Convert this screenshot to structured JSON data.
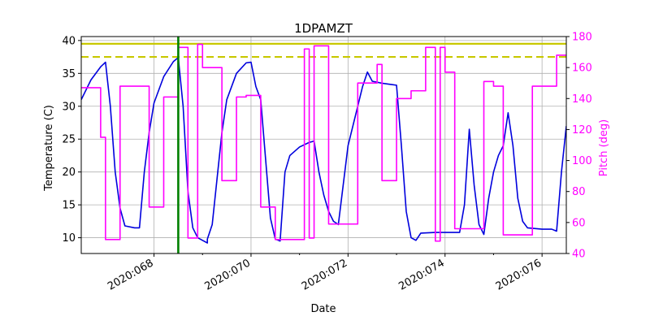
{
  "chart_data": {
    "type": "line",
    "title": "1DPAMZT",
    "xlabel": "Date",
    "ylabel": "Temperature (C)",
    "ylabel_right": "Pitch (deg)",
    "x_unit": "day of year 2020",
    "xlim": [
      2020.0665,
      2020.0765
    ],
    "ylim": [
      7.6,
      40.6
    ],
    "ylim_right": [
      40,
      180
    ],
    "x_ticks": [
      {
        "value": 2020.068,
        "label": "2020:068"
      },
      {
        "value": 2020.07,
        "label": "2020:070"
      },
      {
        "value": 2020.072,
        "label": "2020:072"
      },
      {
        "value": 2020.074,
        "label": "2020:074"
      },
      {
        "value": 2020.076,
        "label": "2020:076"
      }
    ],
    "y_ticks": [
      10,
      15,
      20,
      25,
      30,
      35,
      40
    ],
    "y_ticks_right": [
      40,
      60,
      80,
      100,
      120,
      140,
      160,
      180
    ],
    "grid": true,
    "colors": {
      "temperature": "#0000dd",
      "pitch": "#ff00ff",
      "limit": "#c8c800",
      "marker": "#008000",
      "right_axis": "#ff00ff"
    },
    "reference_lines": [
      {
        "kind": "horizontal",
        "y": 39.5,
        "style": "solid",
        "color": "#c8c800"
      },
      {
        "kind": "horizontal",
        "y": 37.5,
        "style": "dashed",
        "color": "#c8c800"
      },
      {
        "kind": "vertical",
        "x": 2020.0685,
        "style": "solid",
        "color": "#008000"
      }
    ],
    "series": [
      {
        "axis": "left",
        "color": "#0000dd",
        "points": [
          [
            2020.0665,
            31.0
          ],
          [
            2020.0667,
            34.0
          ],
          [
            2020.0669,
            36.0
          ],
          [
            2020.067,
            36.7
          ],
          [
            2020.0671,
            30.0
          ],
          [
            2020.0672,
            20.0
          ],
          [
            2020.0673,
            14.5
          ],
          [
            2020.0674,
            11.8
          ],
          [
            2020.0676,
            11.5
          ],
          [
            2020.0677,
            11.5
          ],
          [
            2020.0678,
            20.0
          ],
          [
            2020.0679,
            26.0
          ],
          [
            2020.068,
            30.5
          ],
          [
            2020.0682,
            34.5
          ],
          [
            2020.0684,
            36.8
          ],
          [
            2020.0685,
            37.4
          ],
          [
            2020.0686,
            30.0
          ],
          [
            2020.0687,
            17.0
          ],
          [
            2020.0688,
            11.5
          ],
          [
            2020.0689,
            10.0
          ],
          [
            2020.069,
            9.6
          ],
          [
            2020.0691,
            9.2
          ],
          [
            2020.0691,
            9.8
          ],
          [
            2020.0692,
            12.0
          ],
          [
            2020.0693,
            19.0
          ],
          [
            2020.0694,
            26.0
          ],
          [
            2020.0695,
            31.0
          ],
          [
            2020.0697,
            35.0
          ],
          [
            2020.0699,
            36.6
          ],
          [
            2020.07,
            36.7
          ],
          [
            2020.0701,
            33.0
          ],
          [
            2020.0702,
            31.0
          ],
          [
            2020.0703,
            22.0
          ],
          [
            2020.0704,
            13.0
          ],
          [
            2020.0705,
            9.8
          ],
          [
            2020.0706,
            9.5
          ],
          [
            2020.0707,
            20.0
          ],
          [
            2020.0708,
            22.5
          ],
          [
            2020.071,
            23.8
          ],
          [
            2020.0712,
            24.5
          ],
          [
            2020.0713,
            24.7
          ],
          [
            2020.0714,
            20.0
          ],
          [
            2020.0715,
            16.5
          ],
          [
            2020.0716,
            14.0
          ],
          [
            2020.0717,
            12.5
          ],
          [
            2020.0718,
            12.0
          ],
          [
            2020.0719,
            18.0
          ],
          [
            2020.072,
            24.0
          ],
          [
            2020.0722,
            30.0
          ],
          [
            2020.0723,
            33.0
          ],
          [
            2020.0724,
            35.2
          ],
          [
            2020.0725,
            33.8
          ],
          [
            2020.0727,
            33.5
          ],
          [
            2020.0729,
            33.3
          ],
          [
            2020.073,
            33.2
          ],
          [
            2020.0731,
            24.0
          ],
          [
            2020.0732,
            14.0
          ],
          [
            2020.0733,
            10.0
          ],
          [
            2020.0734,
            9.6
          ],
          [
            2020.0735,
            10.7
          ],
          [
            2020.0738,
            10.8
          ],
          [
            2020.0741,
            10.8
          ],
          [
            2020.0743,
            10.8
          ],
          [
            2020.0744,
            15.0
          ],
          [
            2020.0745,
            26.5
          ],
          [
            2020.0746,
            18.0
          ],
          [
            2020.0747,
            12.0
          ],
          [
            2020.0748,
            10.5
          ],
          [
            2020.0749,
            16.0
          ],
          [
            2020.075,
            20.0
          ],
          [
            2020.0751,
            22.5
          ],
          [
            2020.0752,
            24.0
          ],
          [
            2020.0753,
            29.0
          ],
          [
            2020.0754,
            24.0
          ],
          [
            2020.0755,
            16.0
          ],
          [
            2020.0756,
            12.5
          ],
          [
            2020.0757,
            11.5
          ],
          [
            2020.076,
            11.3
          ],
          [
            2020.0762,
            11.3
          ],
          [
            2020.0763,
            11.0
          ],
          [
            2020.0764,
            20.0
          ],
          [
            2020.0765,
            27.0
          ]
        ]
      },
      {
        "axis": "right",
        "color": "#ff00ff",
        "points": [
          [
            2020.0665,
            147
          ],
          [
            2020.0669,
            147
          ],
          [
            2020.0669,
            115
          ],
          [
            2020.067,
            115
          ],
          [
            2020.067,
            49
          ],
          [
            2020.0673,
            49
          ],
          [
            2020.0673,
            148
          ],
          [
            2020.0679,
            148
          ],
          [
            2020.0679,
            70
          ],
          [
            2020.0682,
            70
          ],
          [
            2020.0682,
            141
          ],
          [
            2020.0685,
            141
          ],
          [
            2020.0685,
            173
          ],
          [
            2020.0687,
            173
          ],
          [
            2020.0687,
            50
          ],
          [
            2020.0689,
            50
          ],
          [
            2020.0689,
            175
          ],
          [
            2020.069,
            175
          ],
          [
            2020.069,
            160
          ],
          [
            2020.0694,
            160
          ],
          [
            2020.0694,
            87
          ],
          [
            2020.0697,
            87
          ],
          [
            2020.0697,
            141
          ],
          [
            2020.0699,
            141
          ],
          [
            2020.0699,
            142
          ],
          [
            2020.0702,
            142
          ],
          [
            2020.0702,
            70
          ],
          [
            2020.0705,
            70
          ],
          [
            2020.0705,
            49
          ],
          [
            2020.0711,
            49
          ],
          [
            2020.0711,
            172
          ],
          [
            2020.0712,
            172
          ],
          [
            2020.0712,
            50
          ],
          [
            2020.0713,
            50
          ],
          [
            2020.0713,
            174
          ],
          [
            2020.0716,
            174
          ],
          [
            2020.0716,
            59
          ],
          [
            2020.0722,
            59
          ],
          [
            2020.0722,
            150
          ],
          [
            2020.0726,
            150
          ],
          [
            2020.0726,
            162
          ],
          [
            2020.0727,
            162
          ],
          [
            2020.0727,
            87
          ],
          [
            2020.073,
            87
          ],
          [
            2020.073,
            140
          ],
          [
            2020.0733,
            140
          ],
          [
            2020.0733,
            145
          ],
          [
            2020.0736,
            145
          ],
          [
            2020.0736,
            173
          ],
          [
            2020.0738,
            173
          ],
          [
            2020.0738,
            48
          ],
          [
            2020.0739,
            48
          ],
          [
            2020.0739,
            173
          ],
          [
            2020.074,
            173
          ],
          [
            2020.074,
            157
          ],
          [
            2020.0742,
            157
          ],
          [
            2020.0742,
            56
          ],
          [
            2020.0748,
            56
          ],
          [
            2020.0748,
            151
          ],
          [
            2020.075,
            151
          ],
          [
            2020.075,
            148
          ],
          [
            2020.0752,
            148
          ],
          [
            2020.0752,
            52
          ],
          [
            2020.0758,
            52
          ],
          [
            2020.0758,
            148
          ],
          [
            2020.0763,
            148
          ],
          [
            2020.0763,
            168
          ],
          [
            2020.0765,
            168
          ]
        ]
      }
    ]
  }
}
